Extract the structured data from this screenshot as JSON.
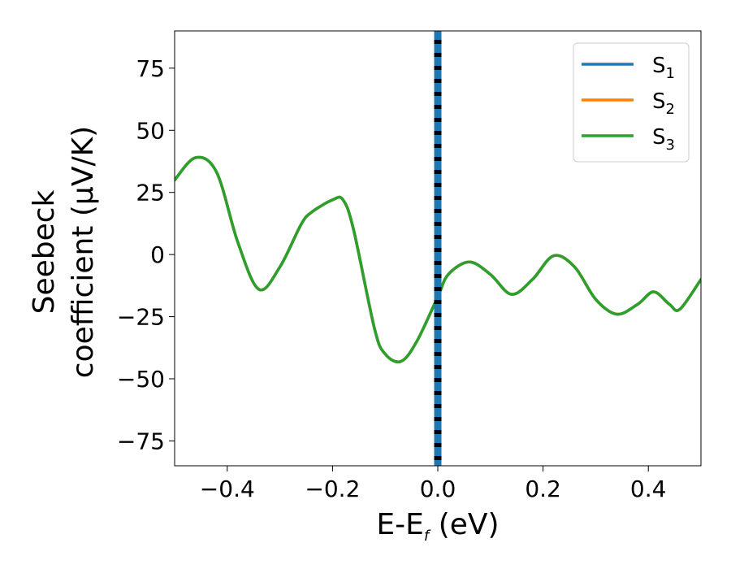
{
  "chart_data": {
    "type": "line",
    "title": "",
    "xlabel": {
      "main": "E-E",
      "sub": "f",
      "unit": " (eV)"
    },
    "ylabel": {
      "line1": "Seebeck",
      "line2": "coefficient  (μV/K)"
    },
    "xlim": [
      -0.5,
      0.5
    ],
    "ylim": [
      -85,
      90
    ],
    "xticks": [
      -0.4,
      -0.2,
      0.0,
      0.2,
      0.4
    ],
    "xtick_labels": [
      "−0.4",
      "−0.2",
      "0.0",
      "0.2",
      "0.4"
    ],
    "yticks": [
      -75,
      -50,
      -25,
      0,
      25,
      50,
      75
    ],
    "ytick_labels": [
      "−75",
      "−50",
      "−25",
      "0",
      "25",
      "50",
      "75"
    ],
    "legend": {
      "placement": "top-right"
    },
    "grid": false,
    "fermi_line": {
      "x": 0.0,
      "colors": [
        "#000000",
        "#1f77b4"
      ]
    },
    "series": [
      {
        "name": "S",
        "sub": "1",
        "color": "#1f77b4",
        "x": [
          -0.5,
          -0.46,
          -0.42,
          -0.38,
          -0.34,
          -0.3,
          -0.26,
          -0.24,
          -0.2,
          -0.18,
          -0.16,
          -0.12,
          -0.1,
          -0.07,
          -0.04,
          0.0,
          0.02,
          0.06,
          0.1,
          0.14,
          0.18,
          0.22,
          0.26,
          0.3,
          0.34,
          0.38,
          0.41,
          0.44,
          0.46,
          0.5
        ],
        "y": [
          30,
          39,
          33,
          5,
          -14,
          -5,
          12,
          17,
          22,
          22,
          10,
          -30,
          -40,
          -43,
          -35,
          -17,
          -8,
          -3,
          -8,
          -16,
          -10,
          -0.5,
          -5,
          -18,
          -24,
          -20,
          -15,
          -20,
          -22,
          -10
        ]
      },
      {
        "name": "S",
        "sub": "2",
        "color": "#ff7f0e",
        "x": [
          -0.5,
          -0.46,
          -0.42,
          -0.38,
          -0.34,
          -0.3,
          -0.26,
          -0.24,
          -0.2,
          -0.18,
          -0.16,
          -0.12,
          -0.1,
          -0.07,
          -0.04,
          0.0,
          0.02,
          0.06,
          0.1,
          0.14,
          0.18,
          0.22,
          0.26,
          0.3,
          0.34,
          0.38,
          0.41,
          0.44,
          0.46,
          0.5
        ],
        "y": [
          30,
          39,
          33,
          5,
          -14,
          -5,
          12,
          17,
          22,
          22,
          10,
          -30,
          -40,
          -43,
          -35,
          -17,
          -8,
          -3,
          -8,
          -16,
          -10,
          -0.5,
          -5,
          -18,
          -24,
          -20,
          -15,
          -20,
          -22,
          -10
        ]
      },
      {
        "name": "S",
        "sub": "3",
        "color": "#2ca02c",
        "x": [
          -0.5,
          -0.46,
          -0.42,
          -0.38,
          -0.34,
          -0.3,
          -0.26,
          -0.24,
          -0.2,
          -0.18,
          -0.16,
          -0.12,
          -0.1,
          -0.07,
          -0.04,
          0.0,
          0.02,
          0.06,
          0.1,
          0.14,
          0.18,
          0.22,
          0.26,
          0.3,
          0.34,
          0.38,
          0.41,
          0.44,
          0.46,
          0.5
        ],
        "y": [
          30,
          39,
          33,
          5,
          -14,
          -5,
          12,
          17,
          22,
          22,
          10,
          -30,
          -40,
          -43,
          -35,
          -17,
          -8,
          -3,
          -8,
          -16,
          -10,
          -0.5,
          -5,
          -18,
          -24,
          -20,
          -15,
          -20,
          -22,
          -10
        ]
      }
    ]
  }
}
